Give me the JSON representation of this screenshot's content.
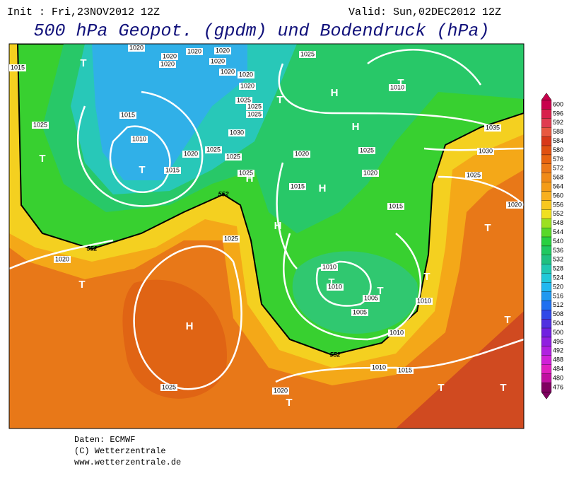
{
  "header": {
    "init": "Init : Fri,23NOV2012 12Z",
    "valid": "Valid: Sun,02DEC2012 12Z",
    "title": "500 hPa Geopot. (gpdm) und Bodendruck (hPa)"
  },
  "map": {
    "isobar_labels": [
      "1020",
      "1020",
      "1020",
      "1020",
      "1020",
      "1020",
      "1020",
      "1020",
      "1020",
      "1025",
      "1015",
      "1010",
      "1025",
      "1025",
      "1025",
      "1030",
      "1025",
      "1025",
      "1015",
      "1025",
      "1010",
      "1015",
      "1020",
      "1025",
      "1035",
      "1030",
      "1025",
      "1025",
      "1020",
      "1020",
      "1015",
      "1015",
      "1020",
      "1025",
      "1020",
      "1010",
      "1010",
      "1005",
      "1005",
      "1010",
      "1010",
      "1020",
      "1025",
      "1015",
      "1010"
    ],
    "contour_labels": [
      "552",
      "552",
      "552"
    ],
    "centers": [
      "T",
      "T",
      "T",
      "T",
      "H",
      "H",
      "T",
      "H",
      "H",
      "H",
      "T",
      "H",
      "T",
      "T",
      "T",
      "T",
      "T",
      "T",
      "T",
      "T"
    ]
  },
  "colorbar": {
    "labels": [
      "600",
      "596",
      "592",
      "588",
      "584",
      "580",
      "576",
      "572",
      "568",
      "564",
      "560",
      "556",
      "552",
      "548",
      "544",
      "540",
      "536",
      "532",
      "528",
      "524",
      "520",
      "516",
      "512",
      "508",
      "504",
      "500",
      "496",
      "492",
      "488",
      "484",
      "480",
      "476"
    ],
    "colors": [
      "#c8004c",
      "#d8204c",
      "#e03c50",
      "#e85840",
      "#d83818",
      "#e05010",
      "#e86410",
      "#ec7818",
      "#f08a18",
      "#f49c18",
      "#f8b020",
      "#f8c820",
      "#f0e020",
      "#9ce020",
      "#58d828",
      "#28d040",
      "#20c860",
      "#20c080",
      "#20c8b0",
      "#20c8d8",
      "#20b8f0",
      "#2098f0",
      "#2070f0",
      "#3048e8",
      "#5030e0",
      "#7020e0",
      "#9020e0",
      "#b020e0",
      "#d020d8",
      "#e020c0",
      "#c010a0",
      "#800060"
    ]
  },
  "footer": {
    "lines": [
      "Daten: ECMWF",
      "(C) Wetterzentrale",
      "www.wetterzentrale.de"
    ]
  }
}
